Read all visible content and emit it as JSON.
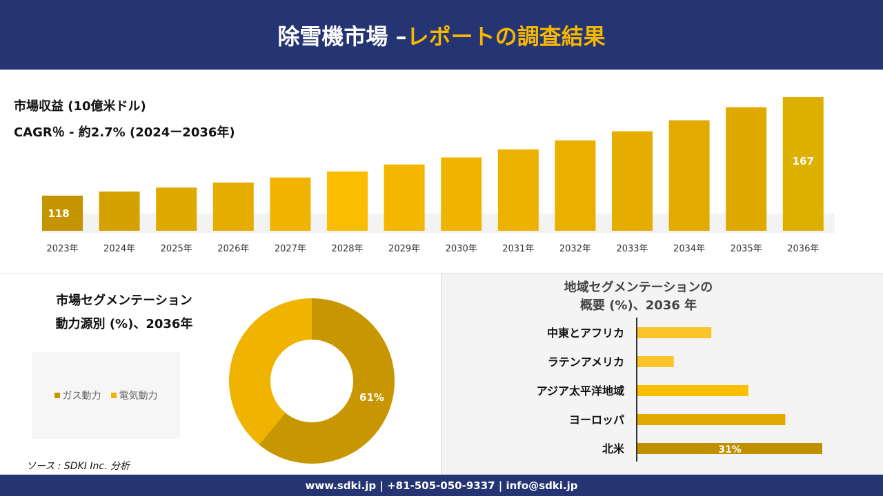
{
  "header": {
    "title_main": "除雪機市場 –",
    "title_accent": "レポートの調査結果"
  },
  "revenue": {
    "title": "市場収益 (10億米ドル)",
    "cagr": "CAGR％ - 約2.7% (2024ー2036年)"
  },
  "chart_data": [
    {
      "type": "bar",
      "categories": [
        "2023年",
        "2024年",
        "2025年",
        "2026年",
        "2027年",
        "2028年",
        "2029年",
        "2030年",
        "2031年",
        "2032年",
        "2033年",
        "2034年",
        "2035年",
        "2036年"
      ],
      "values": [
        118,
        120,
        122,
        124.5,
        127,
        130,
        133.5,
        137,
        141,
        145.5,
        150,
        155.5,
        162,
        167
      ],
      "data_labels": {
        "0": "118",
        "13": "167"
      },
      "ylim": [
        100,
        170
      ],
      "grid": false,
      "colors": [
        "#c49500",
        "#d4a200",
        "#dfaa00",
        "#e5ad00",
        "#f0b400",
        "#fbbd00",
        "#f3b700",
        "#f0b400",
        "#edb200",
        "#e9b000",
        "#e6ad00",
        "#e3ab00",
        "#e0a900",
        "#ddb000"
      ]
    },
    {
      "type": "pie",
      "title": "市場セグメンテーション 動力源別 (%)、2036年",
      "title_lines": [
        "市場セグメンテーション",
        "動力源別 (%)、2036年"
      ],
      "slices": [
        {
          "name": "ガス動力",
          "value": 61,
          "label": "61%",
          "color": "#c89600"
        },
        {
          "name": "電気動力",
          "value": 39,
          "color": "#efb300"
        }
      ],
      "legend": "left"
    },
    {
      "type": "bar",
      "orientation": "horizontal",
      "title_lines": [
        "地域セグメンテーションの",
        "概要 (%)、2036 年"
      ],
      "categories": [
        "中東とアフリカ",
        "ラテンアメリカ",
        "アジア太平洋地域",
        "ヨーロッパ",
        "北米"
      ],
      "values": [
        12.4,
        6.1,
        18.6,
        24.8,
        31
      ],
      "data_labels": {
        "4": "31%"
      },
      "colors": [
        "#fbc52a",
        "#fbc52a",
        "#fbbe00",
        "#e2aa00",
        "#c09000"
      ]
    }
  ],
  "source": "ソース : SDKI Inc. 分析",
  "footer": "www.sdki.jp | +81-505-050-9337 | info@sdki.jp"
}
